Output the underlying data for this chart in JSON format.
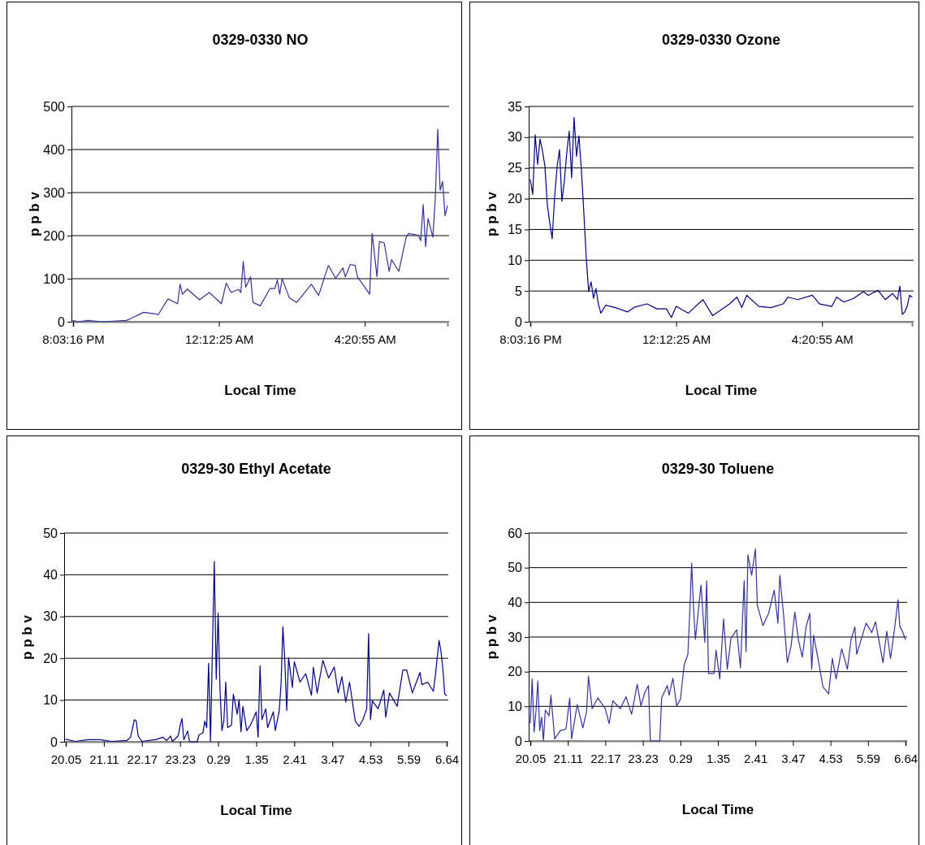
{
  "chart_data": [
    {
      "type": "line",
      "title": "0329-0330 NO",
      "xlabel": "Local Time",
      "ylabel": "p p b v",
      "grid": "y",
      "ylim": [
        0,
        500
      ],
      "yticks": [
        0,
        100,
        200,
        300,
        400,
        500
      ],
      "categories": [
        "8:03:16 PM",
        null,
        null,
        null,
        null,
        null,
        null,
        null,
        null,
        null,
        null,
        null,
        null,
        null,
        null,
        null,
        null,
        null,
        null,
        null,
        null,
        null,
        null,
        null,
        null,
        null,
        null,
        null,
        null,
        null,
        null,
        null,
        null,
        null,
        null,
        null,
        null,
        null,
        null,
        null,
        null,
        null,
        null,
        null,
        null,
        null,
        null,
        null,
        null,
        null,
        null,
        null,
        null,
        null,
        null,
        null,
        null,
        null,
        null,
        null,
        "12:12:25 AM",
        null,
        null,
        null,
        null,
        null,
        null,
        null,
        null,
        null,
        null,
        null,
        null,
        null,
        null,
        null,
        null,
        null,
        null,
        null,
        null,
        null,
        null,
        null,
        null,
        null,
        null,
        null,
        null,
        null,
        null,
        null,
        null,
        null,
        null,
        null,
        null,
        null,
        null,
        null,
        null,
        null,
        null,
        null,
        null,
        null,
        null,
        null,
        null,
        null,
        null,
        null,
        null,
        null,
        null,
        null,
        null,
        null,
        null,
        null,
        "4:20:55 AM",
        null,
        null,
        null,
        null,
        null,
        null,
        null,
        null,
        null,
        null,
        null,
        null,
        null,
        null,
        null,
        null,
        null,
        null,
        null,
        null,
        null,
        null,
        null,
        null,
        null,
        null,
        null,
        null,
        null,
        null,
        null,
        null,
        null,
        null
      ],
      "series": [
        {
          "color": "#333399",
          "values": [
            3,
            null,
            0,
            null,
            null,
            null,
            3,
            null,
            null,
            null,
            null,
            null,
            0,
            null,
            null,
            null,
            null,
            null,
            null,
            null,
            null,
            null,
            3,
            null,
            8,
            null,
            null,
            null,
            null,
            22,
            null,
            null,
            null,
            null,
            18,
            16,
            null,
            null,
            null,
            53,
            null,
            null,
            null,
            42,
            87,
            64,
            null,
            76,
            null,
            null,
            null,
            null,
            51,
            null,
            null,
            null,
            68,
            null,
            null,
            null,
            null,
            42,
            null,
            90,
            null,
            68,
            null,
            null,
            75,
            68,
            140,
            80,
            null,
            104,
            45,
            null,
            null,
            37,
            null,
            null,
            null,
            77,
            null,
            77,
            97,
            64,
            100,
            null,
            null,
            55,
            null,
            null,
            45,
            null,
            null,
            null,
            null,
            null,
            87,
            null,
            null,
            61,
            null,
            null,
            null,
            131,
            null,
            null,
            101,
            null,
            null,
            125,
            104,
            null,
            133,
            null,
            131,
            104,
            null,
            null,
            null,
            null,
            64,
            205,
            null,
            105,
            186,
            null,
            183,
            null,
            117,
            144,
            null,
            null,
            117,
            null,
            null,
            196,
            205,
            null,
            null,
            null,
            201,
            188,
            272,
            174,
            240,
            null,
            196,
            287,
            447,
            305,
            326,
            246,
            269
          ]
        }
      ]
    },
    {
      "type": "line",
      "title": "0329-0330 Ozone",
      "xlabel": "Local Time",
      "ylabel": "p p b v",
      "grid": "y",
      "ylim": [
        0,
        35
      ],
      "yticks": [
        0,
        5,
        10,
        15,
        20,
        25,
        30,
        35
      ],
      "categories": [
        "8:03:16 PM",
        null,
        null,
        null,
        null,
        null,
        null,
        null,
        null,
        null,
        null,
        null,
        null,
        null,
        null,
        null,
        null,
        null,
        null,
        null,
        null,
        null,
        null,
        null,
        null,
        null,
        null,
        null,
        null,
        null,
        null,
        null,
        null,
        null,
        null,
        null,
        null,
        null,
        null,
        null,
        null,
        null,
        null,
        null,
        null,
        null,
        null,
        null,
        null,
        null,
        null,
        null,
        null,
        null,
        null,
        null,
        null,
        null,
        null,
        null,
        "12:12:25 AM",
        null,
        null,
        null,
        null,
        null,
        null,
        null,
        null,
        null,
        null,
        null,
        null,
        null,
        null,
        null,
        null,
        null,
        null,
        null,
        null,
        null,
        null,
        null,
        null,
        null,
        null,
        null,
        null,
        null,
        null,
        null,
        null,
        null,
        null,
        null,
        null,
        null,
        null,
        null,
        null,
        null,
        null,
        null,
        null,
        null,
        null,
        null,
        null,
        null,
        null,
        null,
        null,
        null,
        null,
        null,
        null,
        null,
        null,
        null,
        "4:20:55 AM",
        null,
        null,
        null,
        null,
        null,
        null,
        null,
        null,
        null,
        null,
        null,
        null,
        null,
        null,
        null,
        null,
        null,
        null,
        null,
        null,
        null,
        null,
        null,
        null,
        null,
        null,
        null,
        null,
        null,
        null,
        null,
        null,
        null,
        null,
        null,
        null,
        null
      ],
      "series": [
        {
          "color": "#000080",
          "values": [
            23.1,
            20.7,
            30.4,
            25.6,
            29.7,
            27.8,
            25.3,
            19.0,
            16.1,
            13.5,
            20.3,
            25.1,
            28.0,
            19.6,
            22.9,
            27.5,
            31.0,
            23.4,
            33.2,
            26.9,
            30.2,
            24.7,
            17.9,
            10.4,
            4.9,
            6.5,
            3.8,
            5.4,
            2.9,
            1.4,
            null,
            2.7,
            null,
            null,
            null,
            2.3,
            null,
            null,
            null,
            null,
            1.6,
            null,
            null,
            2.4,
            null,
            null,
            null,
            null,
            2.9,
            null,
            null,
            null,
            2.1,
            null,
            null,
            null,
            2.1,
            null,
            0.7,
            null,
            2.5,
            null,
            null,
            null,
            null,
            1.4,
            null,
            null,
            null,
            null,
            null,
            3.6,
            null,
            null,
            null,
            1.0,
            null,
            null,
            null,
            null,
            null,
            null,
            2.9,
            null,
            null,
            4.0,
            null,
            2.3,
            null,
            4.3,
            null,
            null,
            null,
            null,
            2.5,
            null,
            null,
            null,
            null,
            2.3,
            null,
            null,
            null,
            null,
            2.9,
            null,
            4.0,
            null,
            null,
            null,
            3.6,
            null,
            null,
            null,
            null,
            null,
            4.3,
            null,
            null,
            2.9,
            null,
            null,
            null,
            null,
            2.5,
            null,
            4.0,
            null,
            null,
            3.2,
            null,
            null,
            null,
            3.8,
            null,
            null,
            null,
            4.9,
            null,
            4.3,
            null,
            null,
            null,
            5.1,
            null,
            null,
            3.6,
            null,
            null,
            4.6,
            null,
            3.6,
            5.8,
            1.2,
            1.6,
            2.5,
            4.3,
            4.0
          ]
        }
      ]
    },
    {
      "type": "line",
      "title": "0329-30 Ethyl Acetate",
      "xlabel": "Local Time",
      "ylabel": "p p b v",
      "grid": "y",
      "ylim": [
        0,
        50
      ],
      "yticks": [
        0,
        10,
        20,
        30,
        40,
        50
      ],
      "categories": [
        "20.05",
        null,
        null,
        null,
        null,
        null,
        null,
        null,
        null,
        null,
        null,
        null,
        null,
        null,
        null,
        null,
        null,
        null,
        null,
        null,
        "21.11",
        null,
        null,
        null,
        null,
        null,
        null,
        null,
        null,
        null,
        null,
        null,
        null,
        null,
        null,
        null,
        null,
        null,
        null,
        null,
        "22.17",
        null,
        null,
        null,
        null,
        null,
        null,
        null,
        null,
        null,
        null,
        null,
        null,
        null,
        null,
        null,
        null,
        null,
        null,
        null,
        "23.23",
        null,
        null,
        null,
        null,
        null,
        null,
        null,
        null,
        null,
        null,
        null,
        null,
        null,
        null,
        null,
        null,
        null,
        null,
        null,
        "0.29",
        null,
        null,
        null,
        null,
        null,
        null,
        null,
        null,
        null,
        null,
        null,
        null,
        null,
        null,
        null,
        null,
        null,
        null,
        null,
        "1.35",
        null,
        null,
        null,
        null,
        null,
        null,
        null,
        null,
        null,
        null,
        null,
        null,
        null,
        null,
        null,
        null,
        null,
        null,
        null,
        "2.41",
        null,
        null,
        null,
        null,
        null,
        null,
        null,
        null,
        null,
        null,
        null,
        null,
        null,
        null,
        null,
        null,
        null,
        null,
        null,
        "3.47",
        null,
        null,
        null,
        null,
        null,
        null,
        null,
        null,
        null,
        null,
        null,
        null,
        null,
        null,
        null,
        null,
        null,
        null,
        null,
        "4.53",
        null,
        null,
        null,
        null,
        null,
        null,
        null,
        null,
        null,
        null,
        null,
        null,
        null,
        null,
        null,
        null,
        null,
        null,
        null,
        "5.59",
        null,
        null,
        null,
        null,
        null,
        null,
        null,
        null,
        null,
        null,
        null,
        null,
        null,
        null,
        null,
        null,
        null,
        null,
        null,
        "6.64"
      ],
      "series": [
        {
          "color": "#000080",
          "values": [
            0.6,
            null,
            null,
            null,
            null,
            0.1,
            null,
            null,
            null,
            null,
            null,
            null,
            0.5,
            null,
            null,
            null,
            null,
            null,
            0.5,
            null,
            null,
            null,
            null,
            null,
            0.1,
            null,
            null,
            null,
            null,
            null,
            null,
            null,
            0.3,
            null,
            1.1,
            null,
            5.3,
            5.0,
            1.4,
            null,
            0.1,
            null,
            null,
            null,
            null,
            null,
            null,
            0.5,
            null,
            null,
            null,
            1.1,
            null,
            0.3,
            null,
            1.4,
            0.1,
            null,
            null,
            1.4,
            3.7,
            5.6,
            0.5,
            null,
            2.6,
            0,
            null,
            null,
            null,
            0,
            1.7,
            null,
            2.1,
            5.0,
            3.4,
            18.8,
            0.1,
            22.1,
            43.2,
            15.0,
            30.8,
            12.4,
            2.7,
            5.0,
            14.3,
            3.4,
            null,
            4.0,
            11.4,
            null,
            6.6,
            10.1,
            2.4,
            8.5,
            null,
            2.7,
            null,
            4.0,
            null,
            null,
            7.2,
            1.1,
            18.2,
            5.3,
            null,
            7.9,
            3.4,
            null,
            null,
            7.2,
            2.7,
            null,
            7.2,
            13.4,
            27.5,
            19.5,
            7.5,
            20.1,
            null,
            13.0,
            19.2,
            null,
            null,
            14.3,
            null,
            null,
            16.3,
            null,
            null,
            11.1,
            17.9,
            null,
            11.7,
            null,
            null,
            19.5,
            null,
            null,
            15.3,
            null,
            null,
            17.9,
            null,
            11.7,
            null,
            15.6,
            null,
            9.5,
            null,
            14.3,
            null,
            null,
            5.0,
            null,
            3.7,
            null,
            5.3,
            null,
            7.9,
            25.9,
            5.3,
            9.8,
            null,
            null,
            7.9,
            null,
            null,
            12.4,
            5.9,
            null,
            11.7,
            null,
            null,
            null,
            8.5,
            null,
            null,
            17.2,
            null,
            17.2,
            null,
            null,
            11.7,
            null,
            null,
            null,
            16.6,
            13.7,
            null,
            null,
            14.3,
            null,
            null,
            12.1,
            15.6,
            null,
            24.3,
            21.7,
            17.5,
            11.4,
            11.1
          ]
        }
      ]
    },
    {
      "type": "line",
      "title": "0329-30 Toluene",
      "xlabel": "Local Time",
      "ylabel": "p p b v",
      "grid": "y",
      "ylim": [
        0,
        60
      ],
      "yticks": [
        0,
        10,
        20,
        30,
        40,
        50,
        60
      ],
      "categories": [
        "20.05",
        null,
        null,
        null,
        null,
        null,
        null,
        null,
        null,
        null,
        null,
        null,
        null,
        null,
        null,
        null,
        null,
        null,
        null,
        null,
        "21.11",
        null,
        null,
        null,
        null,
        null,
        null,
        null,
        null,
        null,
        null,
        null,
        null,
        null,
        null,
        null,
        null,
        null,
        null,
        null,
        "22.17",
        null,
        null,
        null,
        null,
        null,
        null,
        null,
        null,
        null,
        null,
        null,
        null,
        null,
        null,
        null,
        null,
        null,
        null,
        null,
        "23.23",
        null,
        null,
        null,
        null,
        null,
        null,
        null,
        null,
        null,
        null,
        null,
        null,
        null,
        null,
        null,
        null,
        null,
        null,
        null,
        "0.29",
        null,
        null,
        null,
        null,
        null,
        null,
        null,
        null,
        null,
        null,
        null,
        null,
        null,
        null,
        null,
        null,
        null,
        null,
        null,
        "1.35",
        null,
        null,
        null,
        null,
        null,
        null,
        null,
        null,
        null,
        null,
        null,
        null,
        null,
        null,
        null,
        null,
        null,
        null,
        null,
        "2.41",
        null,
        null,
        null,
        null,
        null,
        null,
        null,
        null,
        null,
        null,
        null,
        null,
        null,
        null,
        null,
        null,
        null,
        null,
        null,
        "3.47",
        null,
        null,
        null,
        null,
        null,
        null,
        null,
        null,
        null,
        null,
        null,
        null,
        null,
        null,
        null,
        null,
        null,
        null,
        null,
        "4.53",
        null,
        null,
        null,
        null,
        null,
        null,
        null,
        null,
        null,
        null,
        null,
        null,
        null,
        null,
        null,
        null,
        null,
        null,
        null,
        "5.59",
        null,
        null,
        null,
        null,
        null,
        null,
        null,
        null,
        null,
        null,
        null,
        null,
        null,
        null,
        null,
        null,
        null,
        null,
        null,
        "6.64"
      ],
      "series": [
        {
          "color": "#333399",
          "values": [
            5.3,
            17.9,
            2.6,
            8.5,
            17.3,
            3.0,
            6.9,
            0.2,
            8.9,
            null,
            7.3,
            13.2,
            null,
            0.6,
            null,
            null,
            3.0,
            null,
            null,
            3.4,
            null,
            12.4,
            0.6,
            null,
            null,
            10.5,
            null,
            null,
            3.8,
            null,
            8.5,
            18.7,
            null,
            9.3,
            null,
            null,
            12.4,
            null,
            null,
            null,
            9.3,
            null,
            5.0,
            null,
            11.6,
            null,
            null,
            null,
            9.3,
            null,
            null,
            12.8,
            null,
            null,
            7.7,
            null,
            null,
            16.4,
            null,
            10.1,
            null,
            14.0,
            null,
            16.0,
            0,
            null,
            null,
            null,
            null,
            0,
            12.4,
            null,
            null,
            16.0,
            13.2,
            null,
            18.1,
            null,
            10.1,
            null,
            12.0,
            null,
            21.9,
            null,
            25.0,
            37.2,
            51.3,
            38.4,
            29.3,
            null,
            39.9,
            45.0,
            null,
            28.5,
            46.2,
            19.5,
            null,
            null,
            19.5,
            26.2,
            null,
            17.9,
            null,
            35.2,
            null,
            20.7,
            null,
            29.7,
            null,
            null,
            32.1,
            null,
            21.1,
            null,
            46.2,
            25.8,
            53.7,
            null,
            47.8,
            51.7,
            55.4,
            39.2,
            null,
            null,
            33.3,
            null,
            null,
            36.8,
            null,
            null,
            43.5,
            null,
            34.0,
            47.8,
            null,
            36.4,
            null,
            22.6,
            null,
            27.4,
            null,
            37.2,
            null,
            28.9,
            null,
            24.2,
            null,
            32.9,
            null,
            36.8,
            20.7,
            30.5,
            null,
            null,
            21.9,
            null,
            15.6,
            null,
            null,
            13.6,
            null,
            23.8,
            null,
            17.9,
            null,
            null,
            26.6,
            null,
            null,
            20.7,
            null,
            29.3,
            null,
            32.9,
            25.0,
            null,
            null,
            null,
            null,
            34.0,
            null,
            null,
            31.3,
            null,
            34.4,
            null,
            null,
            null,
            22.6,
            null,
            31.7,
            null,
            23.8,
            null,
            31.7,
            null,
            40.7,
            32.9,
            32.1,
            null,
            29.3
          ]
        }
      ]
    }
  ]
}
